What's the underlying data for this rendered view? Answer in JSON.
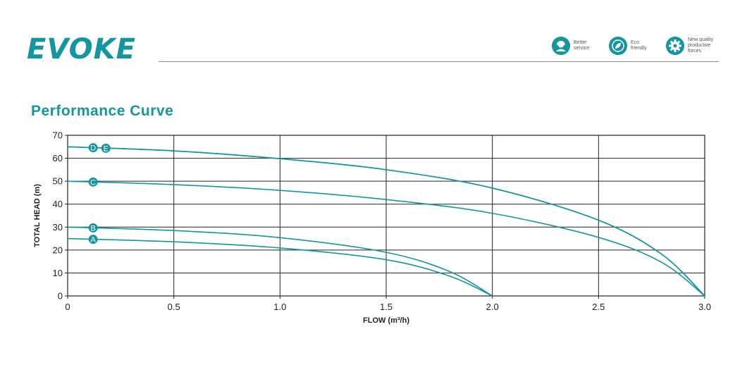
{
  "brand": {
    "name": "EVOKE",
    "color": "#1496a0"
  },
  "badges": [
    {
      "icon": "support-agent-icon",
      "label": "Better\nservice"
    },
    {
      "icon": "eco-leaf-icon",
      "label": "Eco\nfriendly"
    },
    {
      "icon": "gear-icon",
      "label": "New quality\nproductive\nforces"
    }
  ],
  "section_title": "Performance Curve",
  "chart_data": {
    "type": "line",
    "title": "",
    "xlabel": "FLOW (m³/h)",
    "ylabel": "TOTAL  HEAD (m)",
    "xlim": [
      0,
      3.0
    ],
    "ylim": [
      0,
      70
    ],
    "x_ticks": [
      "0",
      "0.5",
      "1.0",
      "1.5",
      "2.0",
      "2.5",
      "3.0"
    ],
    "y_ticks": [
      "0",
      "10",
      "20",
      "30",
      "40",
      "50",
      "60",
      "70"
    ],
    "grid": true,
    "line_color": "#1496a0",
    "series": [
      {
        "name": "A",
        "label_at": 0.12,
        "x": [
          0,
          0.5,
          1.0,
          1.5,
          1.8,
          2.0
        ],
        "y": [
          25,
          23.6,
          20.9,
          15.8,
          8.6,
          0
        ]
      },
      {
        "name": "B",
        "label_at": 0.12,
        "x": [
          0,
          0.5,
          1.0,
          1.5,
          1.8,
          2.0
        ],
        "y": [
          30,
          28.5,
          25.4,
          19.0,
          10.6,
          0
        ]
      },
      {
        "name": "C",
        "label_at": 0.12,
        "x": [
          0,
          0.5,
          1.0,
          1.5,
          2.0,
          2.5,
          2.8,
          3.0
        ],
        "y": [
          50,
          48.5,
          46.0,
          42.0,
          36.0,
          25.5,
          14.5,
          0
        ]
      },
      {
        "name": "D",
        "label_at": 0.12,
        "x": [
          0,
          0.5,
          1.0,
          1.5,
          2.0,
          2.5,
          2.8,
          3.0
        ],
        "y": [
          65,
          63.2,
          59.8,
          55.0,
          47.0,
          33.0,
          18.0,
          0
        ]
      },
      {
        "name": "E",
        "label_at": 0.18,
        "x": [
          0,
          0.5,
          1.0,
          1.5,
          2.0,
          2.5,
          2.8,
          3.0
        ],
        "y": [
          65,
          63.2,
          59.8,
          55.0,
          47.0,
          33.0,
          18.0,
          0
        ]
      }
    ]
  }
}
